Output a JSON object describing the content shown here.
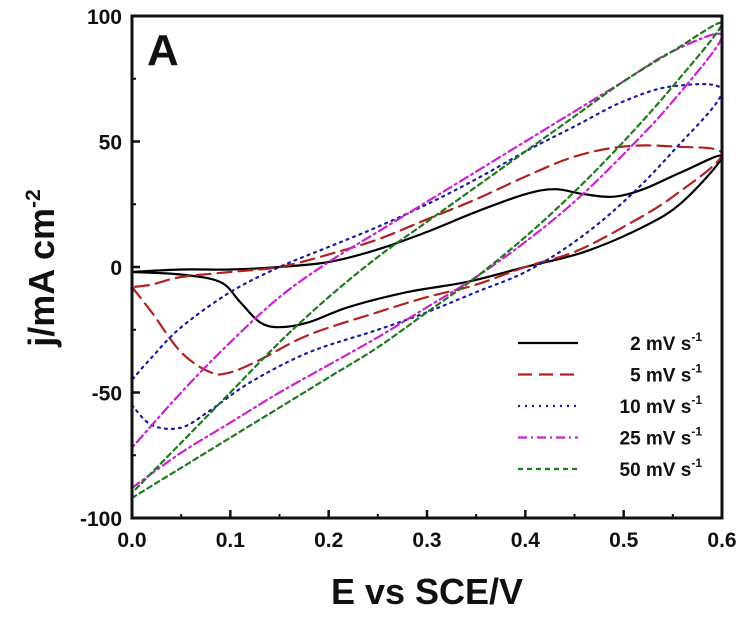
{
  "chart_data": {
    "type": "line",
    "panel_label": "A",
    "xlabel": "E vs SCE/V",
    "ylabel": {
      "main": "j/mA cm",
      "sup": "-2"
    },
    "xlim": [
      0.0,
      0.6
    ],
    "ylim": [
      -100,
      100
    ],
    "xticks": [
      0.0,
      0.1,
      0.2,
      0.3,
      0.4,
      0.5,
      0.6
    ],
    "xtick_labels": [
      "0.0",
      "0.1",
      "0.2",
      "0.3",
      "0.4",
      "0.5",
      "0.6"
    ],
    "yticks": [
      100,
      50,
      0,
      -50,
      -100
    ],
    "ytick_labels": [
      "100",
      "50",
      "0",
      "-50",
      "-100"
    ],
    "grid": false,
    "legend_position": "bottom-right",
    "series": [
      {
        "name": "2 mV s",
        "sup": "-1",
        "color": "#000000",
        "dash": "solid",
        "x": [
          0.0,
          0.05,
          0.09,
          0.11,
          0.13,
          0.15,
          0.18,
          0.22,
          0.28,
          0.34,
          0.4,
          0.46,
          0.52,
          0.56,
          0.6,
          0.56,
          0.52,
          0.49,
          0.46,
          0.43,
          0.4,
          0.35,
          0.3,
          0.25,
          0.2,
          0.15,
          0.1,
          0.05,
          0.0
        ],
        "y": [
          -2,
          -3,
          -6,
          -14,
          -22,
          -24,
          -22,
          -16,
          -10,
          -6,
          0,
          6,
          16,
          26,
          44,
          38,
          31,
          28,
          29,
          31,
          29,
          22,
          14,
          7,
          2,
          0,
          -1,
          -1,
          -2
        ]
      },
      {
        "name": "5 mV s",
        "sup": "-1",
        "color": "#b22222",
        "dash": "long-dash",
        "x": [
          0.0,
          0.02,
          0.05,
          0.08,
          0.1,
          0.13,
          0.18,
          0.25,
          0.3,
          0.35,
          0.4,
          0.45,
          0.5,
          0.55,
          0.6,
          0.55,
          0.5,
          0.45,
          0.4,
          0.35,
          0.3,
          0.25,
          0.2,
          0.15,
          0.1,
          0.05,
          0.02,
          0.0
        ],
        "y": [
          -8,
          -18,
          -34,
          -42,
          -42,
          -37,
          -27,
          -18,
          -12,
          -7,
          0,
          6,
          16,
          28,
          45,
          48,
          48,
          44,
          36,
          27,
          19,
          11,
          5,
          0,
          -2,
          -4,
          -7,
          -8
        ]
      },
      {
        "name": "10 mV s",
        "sup": "-1",
        "color": "#1a1aa6",
        "dash": "dotted",
        "x": [
          0.0,
          0.02,
          0.05,
          0.08,
          0.12,
          0.18,
          0.25,
          0.3,
          0.35,
          0.4,
          0.45,
          0.5,
          0.55,
          0.6,
          0.55,
          0.5,
          0.45,
          0.4,
          0.35,
          0.3,
          0.25,
          0.2,
          0.15,
          0.1,
          0.05,
          0.02,
          0.0
        ],
        "y": [
          -55,
          -63,
          -64,
          -57,
          -46,
          -34,
          -25,
          -18,
          -10,
          -2,
          10,
          26,
          46,
          70,
          72,
          66,
          56,
          46,
          35,
          25,
          16,
          8,
          0,
          -10,
          -24,
          -36,
          -45
        ]
      },
      {
        "name": "25 mV s",
        "sup": "-1",
        "color": "#cc22cc",
        "dash": "dash-dot",
        "x": [
          0.0,
          0.05,
          0.1,
          0.15,
          0.2,
          0.25,
          0.3,
          0.35,
          0.4,
          0.45,
          0.5,
          0.55,
          0.6,
          0.55,
          0.5,
          0.45,
          0.4,
          0.35,
          0.3,
          0.25,
          0.2,
          0.15,
          0.1,
          0.05,
          0.0
        ],
        "y": [
          -88,
          -74,
          -62,
          -50,
          -39,
          -28,
          -16,
          -4,
          10,
          26,
          45,
          66,
          92,
          86,
          74,
          62,
          50,
          38,
          26,
          14,
          2,
          -12,
          -30,
          -50,
          -72
        ]
      },
      {
        "name": "50 mV s",
        "sup": "-1",
        "color": "#1e7a1e",
        "dash": "short-dash",
        "x": [
          0.0,
          0.05,
          0.1,
          0.15,
          0.2,
          0.25,
          0.3,
          0.35,
          0.4,
          0.45,
          0.5,
          0.55,
          0.6,
          0.55,
          0.5,
          0.45,
          0.4,
          0.35,
          0.3,
          0.25,
          0.2,
          0.15,
          0.1,
          0.05,
          0.0
        ],
        "y": [
          -92,
          -80,
          -68,
          -56,
          -44,
          -32,
          -18,
          -4,
          12,
          30,
          50,
          72,
          97,
          86,
          74,
          60,
          46,
          32,
          18,
          4,
          -12,
          -30,
          -50,
          -70,
          -90
        ]
      }
    ]
  }
}
